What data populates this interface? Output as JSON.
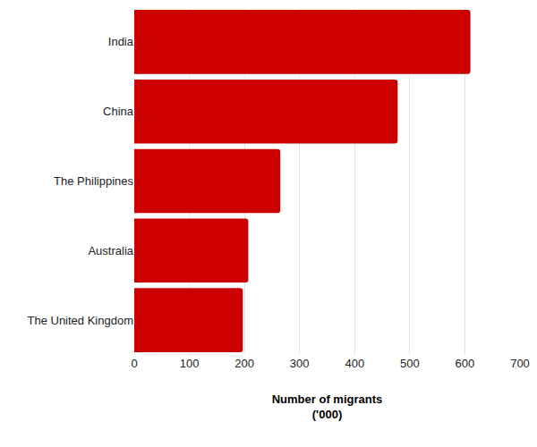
{
  "chart_data": {
    "type": "bar",
    "orientation": "horizontal",
    "categories": [
      "India",
      "China",
      "The Philippines",
      "Australia",
      "The United Kingdom"
    ],
    "values": [
      610,
      478,
      265,
      207,
      197
    ],
    "color": "#cc0000",
    "xlabel": "Number of migrants\n('000)",
    "xlim": [
      0,
      700
    ],
    "xticks": [
      0,
      100,
      200,
      300,
      400,
      500,
      600,
      700
    ],
    "grid": true
  }
}
